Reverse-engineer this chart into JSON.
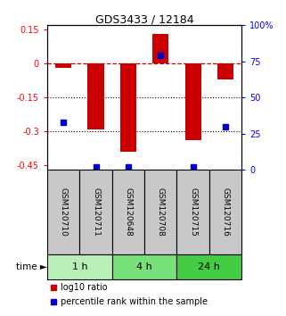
{
  "title": "GDS3433 / 12184",
  "samples": [
    "GSM120710",
    "GSM120711",
    "GSM120648",
    "GSM120708",
    "GSM120715",
    "GSM120716"
  ],
  "log10_ratio": [
    -0.02,
    -0.29,
    -0.39,
    0.13,
    -0.34,
    -0.07
  ],
  "percentile_rank": [
    33,
    2,
    2,
    79,
    2,
    30
  ],
  "time_groups": [
    {
      "label": "1 h",
      "samples": [
        0,
        1
      ],
      "color": "#b8f0b8"
    },
    {
      "label": "4 h",
      "samples": [
        2,
        3
      ],
      "color": "#78e078"
    },
    {
      "label": "24 h",
      "samples": [
        4,
        5
      ],
      "color": "#44cc44"
    }
  ],
  "bar_color": "#cc0000",
  "dot_color": "#0000cc",
  "label_bg": "#c8c8c8",
  "ylim_left": [
    -0.47,
    0.17
  ],
  "ylim_right": [
    0,
    100
  ],
  "yticks_left": [
    0.15,
    0,
    -0.15,
    -0.3,
    -0.45
  ],
  "yticks_right": [
    100,
    75,
    50,
    25,
    0
  ],
  "dotted_lines": [
    -0.15,
    -0.3
  ],
  "bar_width": 0.5
}
